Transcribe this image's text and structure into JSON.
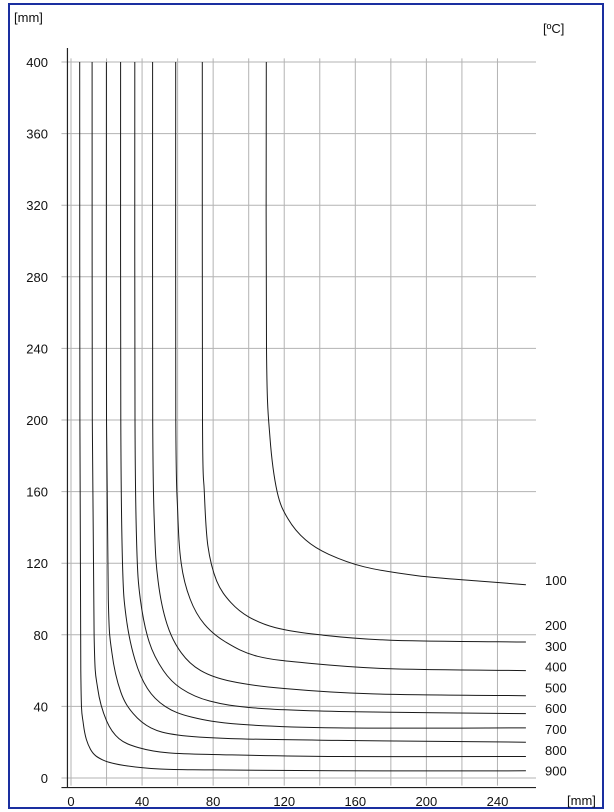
{
  "chart_data": {
    "type": "line",
    "xlabel": "[mm]",
    "ylabel": "[mm]",
    "legend_title": "[ºC]",
    "xlim": [
      -2,
      260
    ],
    "ylim": [
      -2,
      402
    ],
    "x_ticks": [
      0,
      40,
      80,
      120,
      160,
      200,
      240
    ],
    "y_ticks": [
      0,
      40,
      80,
      120,
      160,
      200,
      240,
      280,
      320,
      360,
      400
    ],
    "grid": true,
    "series_labels": [
      "100",
      "200",
      "300",
      "400",
      "500",
      "600",
      "700",
      "800",
      "900"
    ],
    "series": [
      {
        "name": "100",
        "x": [
          109.9,
          110,
          112,
          116,
          122,
          132,
          145,
          165,
          195,
          230,
          256
        ],
        "y": [
          400,
          240,
          190,
          160,
          145,
          133,
          125,
          118,
          113,
          110,
          108
        ]
      },
      {
        "name": "200",
        "x": [
          73.9,
          74,
          75,
          77,
          82,
          90,
          100,
          115,
          140,
          180,
          256
        ],
        "y": [
          400,
          200,
          160,
          130,
          110,
          98,
          90,
          84,
          80,
          77,
          76
        ]
      },
      {
        "name": "300",
        "x": [
          58.9,
          59,
          60,
          62,
          67,
          75,
          87,
          105,
          135,
          180,
          256
        ],
        "y": [
          400,
          200,
          150,
          120,
          100,
          86,
          76,
          68,
          64,
          61,
          60
        ]
      },
      {
        "name": "400",
        "x": [
          45.9,
          46,
          47,
          49,
          54,
          62,
          73,
          90,
          120,
          170,
          256
        ],
        "y": [
          400,
          200,
          140,
          110,
          86,
          70,
          60,
          54,
          50,
          47,
          46
        ]
      },
      {
        "name": "500",
        "x": [
          35.9,
          36,
          37,
          39,
          44,
          52,
          62,
          78,
          105,
          160,
          256
        ],
        "y": [
          400,
          200,
          130,
          100,
          76,
          60,
          50,
          43,
          39,
          37,
          36
        ]
      },
      {
        "name": "600",
        "x": [
          27.9,
          28,
          29,
          31,
          36,
          43,
          53,
          68,
          95,
          150,
          256
        ],
        "y": [
          400,
          200,
          120,
          90,
          66,
          50,
          40,
          34,
          30,
          28,
          28
        ]
      },
      {
        "name": "700",
        "x": [
          19.9,
          20,
          21,
          23,
          28,
          35,
          45,
          60,
          90,
          150,
          256
        ],
        "y": [
          400,
          200,
          100,
          70,
          48,
          36,
          28,
          24,
          22,
          21,
          20
        ]
      },
      {
        "name": "800",
        "x": [
          11.9,
          12,
          13,
          15,
          20,
          27,
          38,
          55,
          85,
          150,
          256
        ],
        "y": [
          400,
          200,
          80,
          50,
          32,
          22,
          17,
          14,
          13,
          12,
          12
        ]
      },
      {
        "name": "900",
        "x": [
          4.9,
          5,
          5.5,
          7,
          11,
          18,
          30,
          50,
          80,
          150,
          256
        ],
        "y": [
          400,
          200,
          60,
          30,
          16,
          10,
          7,
          5,
          4.5,
          4,
          4
        ]
      }
    ]
  }
}
